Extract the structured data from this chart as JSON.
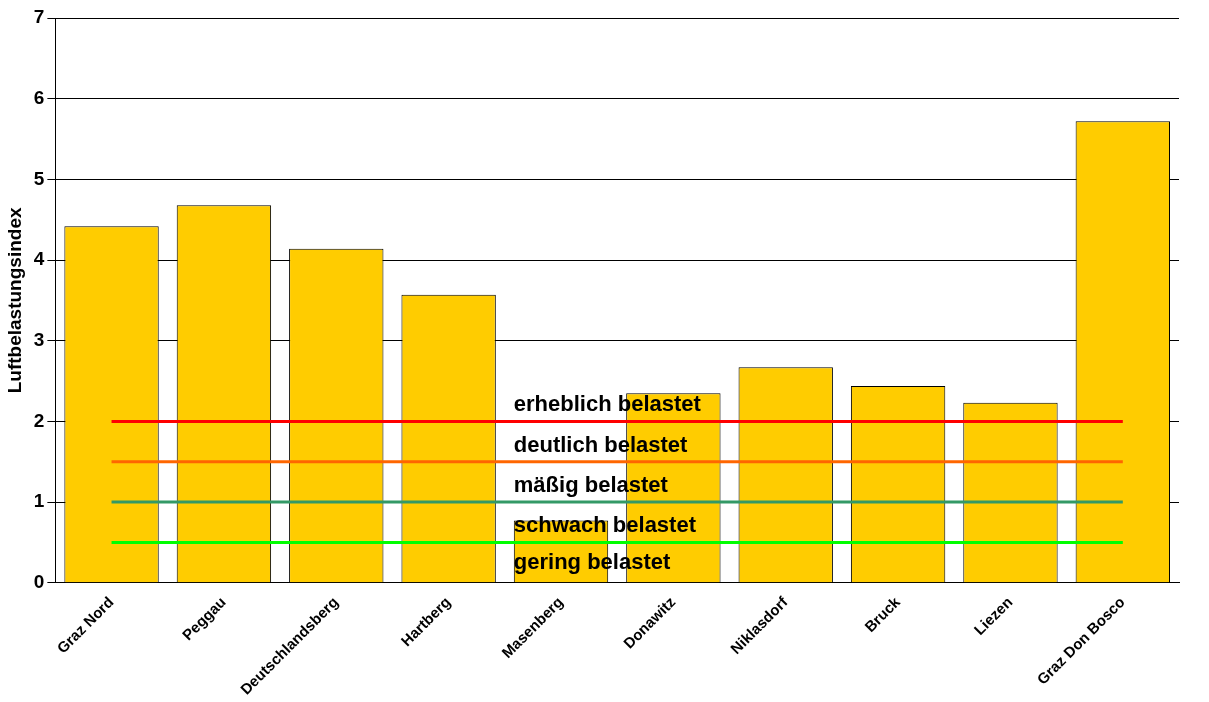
{
  "chart_data": {
    "type": "bar",
    "ylabel": "Luftbelastungsindex",
    "categories": [
      "Graz Nord",
      "Peggau",
      "Deutschlandsberg",
      "Hartberg",
      "Masenberg",
      "Donawitz",
      "Niklasdorf",
      "Bruck",
      "Liezen",
      "Graz Don Bosco"
    ],
    "values": [
      4.42,
      4.68,
      4.14,
      3.57,
      0.77,
      2.35,
      2.67,
      2.44,
      2.23,
      5.72
    ],
    "color": "#ffcc00",
    "ylim": [
      0,
      7
    ],
    "yticks": [
      0,
      1,
      2,
      3,
      4,
      5,
      6,
      7
    ],
    "grid": "y",
    "legend": false,
    "ref_lines": [
      {
        "axis": "y",
        "value": 2,
        "label": "erheblich belastet",
        "color": "#ff0000"
      },
      {
        "axis": "y",
        "value": 1.5,
        "label": "deutlich belastet",
        "color": "#ff6600"
      },
      {
        "axis": "y",
        "value": 1,
        "label": "mäßig belastet",
        "color": "#339966"
      },
      {
        "axis": "y",
        "value": 0.5,
        "label": "schwach belastet",
        "color": "#00ff00"
      }
    ],
    "annotations": [
      "gering belastet"
    ]
  }
}
